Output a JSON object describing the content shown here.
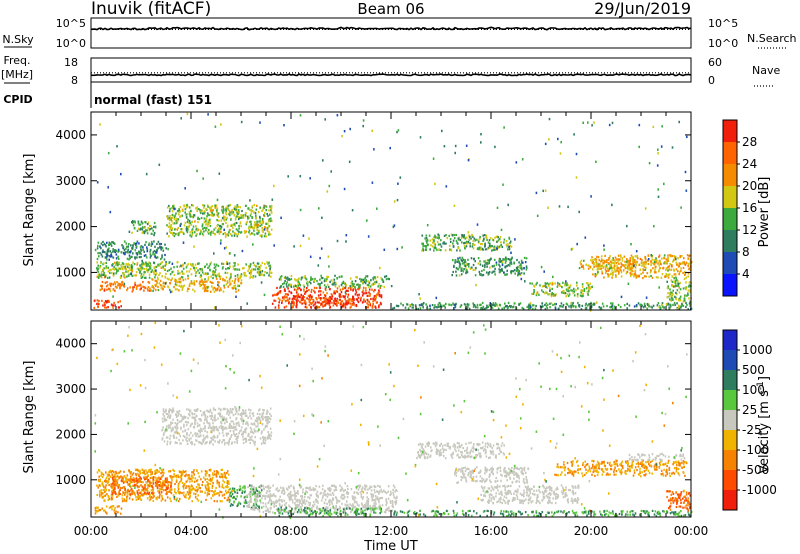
{
  "header": {
    "station": "Inuvik (fitACF)",
    "beam": "Beam 06",
    "date": "29/Jun/2019"
  },
  "chart_data": [
    {
      "type": "line",
      "panel": "noise",
      "left_label": "N.Sky",
      "left_ticks": [
        "10^5",
        "10^0"
      ],
      "right_label": "N.Search",
      "right_ticks": [
        "10^5",
        "10^0"
      ],
      "series": [
        {
          "name": "N.Sky",
          "style": "solid",
          "values": [
            3.2,
            3.2,
            3.3,
            3.2,
            3.2,
            3.3,
            3.2,
            3.2,
            3.3,
            3.2,
            3.2,
            3.2,
            3.3
          ]
        },
        {
          "name": "N.Search",
          "style": "dotted",
          "values": [
            3.1,
            3.1,
            3.1,
            3.1,
            3.1,
            3.1,
            3.1,
            3.1,
            3.1,
            3.1,
            3.1,
            3.1,
            3.1
          ]
        }
      ]
    },
    {
      "type": "line",
      "panel": "frequency",
      "left_label": "Freq.",
      "left_unit": "[MHz]",
      "left_ticks": [
        "18",
        "8"
      ],
      "right_label": "Nave",
      "right_ticks": [
        "60",
        "0"
      ],
      "cpid_label": "CPID",
      "cpid_text": "normal (fast) 151",
      "series": [
        {
          "name": "Freq.",
          "style": "solid",
          "values": [
            11,
            11,
            11,
            11,
            11,
            11,
            11,
            11,
            11,
            11,
            11,
            11,
            11
          ]
        },
        {
          "name": "Nave",
          "style": "dotted",
          "values": [
            23,
            23,
            23,
            23,
            23,
            23,
            23,
            23,
            23,
            23,
            23,
            23,
            23
          ]
        }
      ]
    },
    {
      "type": "heatmap",
      "panel": "power",
      "ylabel": "Slant Range [km]",
      "yticks": [
        "1000",
        "2000",
        "3000",
        "4000"
      ],
      "ylim": [
        180,
        4500
      ],
      "colorbar_label": "Power [dB]",
      "colorbar_ticks": [
        "4",
        "8",
        "12",
        "16",
        "20",
        "24",
        "28"
      ],
      "colorbar_colors": [
        "#0a14ff",
        "#1e4bb4",
        "#2e7d5e",
        "#3caa3c",
        "#d2c814",
        "#f58c00",
        "#ff6400",
        "#f01e0a"
      ],
      "regions": [
        {
          "t": [
            0.1,
            1.2
          ],
          "r": [
            250,
            420
          ],
          "v": 28
        },
        {
          "t": [
            0.3,
            2.4
          ],
          "r": [
            600,
            820
          ],
          "v": 24
        },
        {
          "t": [
            2.4,
            6.0
          ],
          "r": [
            600,
            900
          ],
          "v": 20
        },
        {
          "t": [
            0.2,
            7.2
          ],
          "r": [
            900,
            1250
          ],
          "v": 16
        },
        {
          "t": [
            0.2,
            3.0
          ],
          "r": [
            1300,
            1700
          ],
          "v": 10
        },
        {
          "t": [
            1.6,
            2.6
          ],
          "r": [
            1850,
            2150
          ],
          "v": 14
        },
        {
          "t": [
            3.0,
            7.2
          ],
          "r": [
            1800,
            2500
          ],
          "v": 16
        },
        {
          "t": [
            6.5,
            7.2
          ],
          "r": [
            1950,
            2150
          ],
          "v": 20
        },
        {
          "t": [
            7.2,
            11.6
          ],
          "r": [
            250,
            700
          ],
          "v": 28
        },
        {
          "t": [
            8.0,
            10.5
          ],
          "r": [
            300,
            500
          ],
          "v": 28
        },
        {
          "t": [
            7.5,
            12.0
          ],
          "r": [
            700,
            950
          ],
          "v": 14
        },
        {
          "t": [
            12.0,
            24.0
          ],
          "r": [
            220,
            360
          ],
          "v": 12
        },
        {
          "t": [
            13.2,
            16.8
          ],
          "r": [
            1500,
            1850
          ],
          "v": 14
        },
        {
          "t": [
            14.4,
            17.4
          ],
          "r": [
            950,
            1350
          ],
          "v": 12
        },
        {
          "t": [
            17.5,
            20.0
          ],
          "r": [
            500,
            800
          ],
          "v": 16
        },
        {
          "t": [
            20.0,
            24.0
          ],
          "r": [
            900,
            1400
          ],
          "v": 20
        },
        {
          "t": [
            19.5,
            23.0
          ],
          "r": [
            1100,
            1300
          ],
          "v": 20
        },
        {
          "t": [
            23.0,
            24.0
          ],
          "r": [
            380,
            900
          ],
          "v": 16
        }
      ]
    },
    {
      "type": "heatmap",
      "panel": "velocity",
      "ylabel": "Slant Range [km]",
      "yticks": [
        "1000",
        "2000",
        "3000",
        "4000"
      ],
      "ylim": [
        180,
        4500
      ],
      "xticks": [
        "00:00",
        "04:00",
        "08:00",
        "12:00",
        "16:00",
        "20:00",
        "00:00"
      ],
      "xlabel": "Time UT",
      "colorbar_label": "Velocity [m s",
      "colorbar_unit_sup": "-1",
      "colorbar_ticks": [
        "-1000",
        "-500",
        "-100",
        "-25",
        "25",
        "100",
        "500",
        "1000"
      ],
      "colorbar_colors": [
        "#f01e0a",
        "#ff4b00",
        "#f58200",
        "#f0b400",
        "#c8c8be",
        "#5ac83c",
        "#2e7d5e",
        "#1e4bb4",
        "#1e28c8"
      ],
      "regions": [
        {
          "t": [
            0.1,
            1.2
          ],
          "r": [
            250,
            450
          ],
          "v": -100
        },
        {
          "t": [
            0.2,
            5.5
          ],
          "r": [
            550,
            1250
          ],
          "v": -100
        },
        {
          "t": [
            0.8,
            3.2
          ],
          "r": [
            700,
            1100
          ],
          "v": -500
        },
        {
          "t": [
            2.8,
            7.2
          ],
          "r": [
            1800,
            2600
          ],
          "v": 0
        },
        {
          "t": [
            5.5,
            6.8
          ],
          "r": [
            400,
            900
          ],
          "v": 100
        },
        {
          "t": [
            6.2,
            12.2
          ],
          "r": [
            300,
            900
          ],
          "v": 0
        },
        {
          "t": [
            7.4,
            11.6
          ],
          "r": [
            220,
            420
          ],
          "v": 100
        },
        {
          "t": [
            12.0,
            24.0
          ],
          "r": [
            220,
            340
          ],
          "v": 100
        },
        {
          "t": [
            13.0,
            16.5
          ],
          "r": [
            1500,
            1850
          ],
          "v": 0
        },
        {
          "t": [
            14.5,
            17.5
          ],
          "r": [
            950,
            1300
          ],
          "v": 0
        },
        {
          "t": [
            15.5,
            19.5
          ],
          "r": [
            500,
            900
          ],
          "v": 0
        },
        {
          "t": [
            18.5,
            23.8
          ],
          "r": [
            1100,
            1450
          ],
          "v": -100
        },
        {
          "t": [
            21.5,
            23.8
          ],
          "r": [
            1450,
            1600
          ],
          "v": 0
        },
        {
          "t": [
            23.0,
            24.0
          ],
          "r": [
            350,
            800
          ],
          "v": -500
        }
      ]
    }
  ]
}
